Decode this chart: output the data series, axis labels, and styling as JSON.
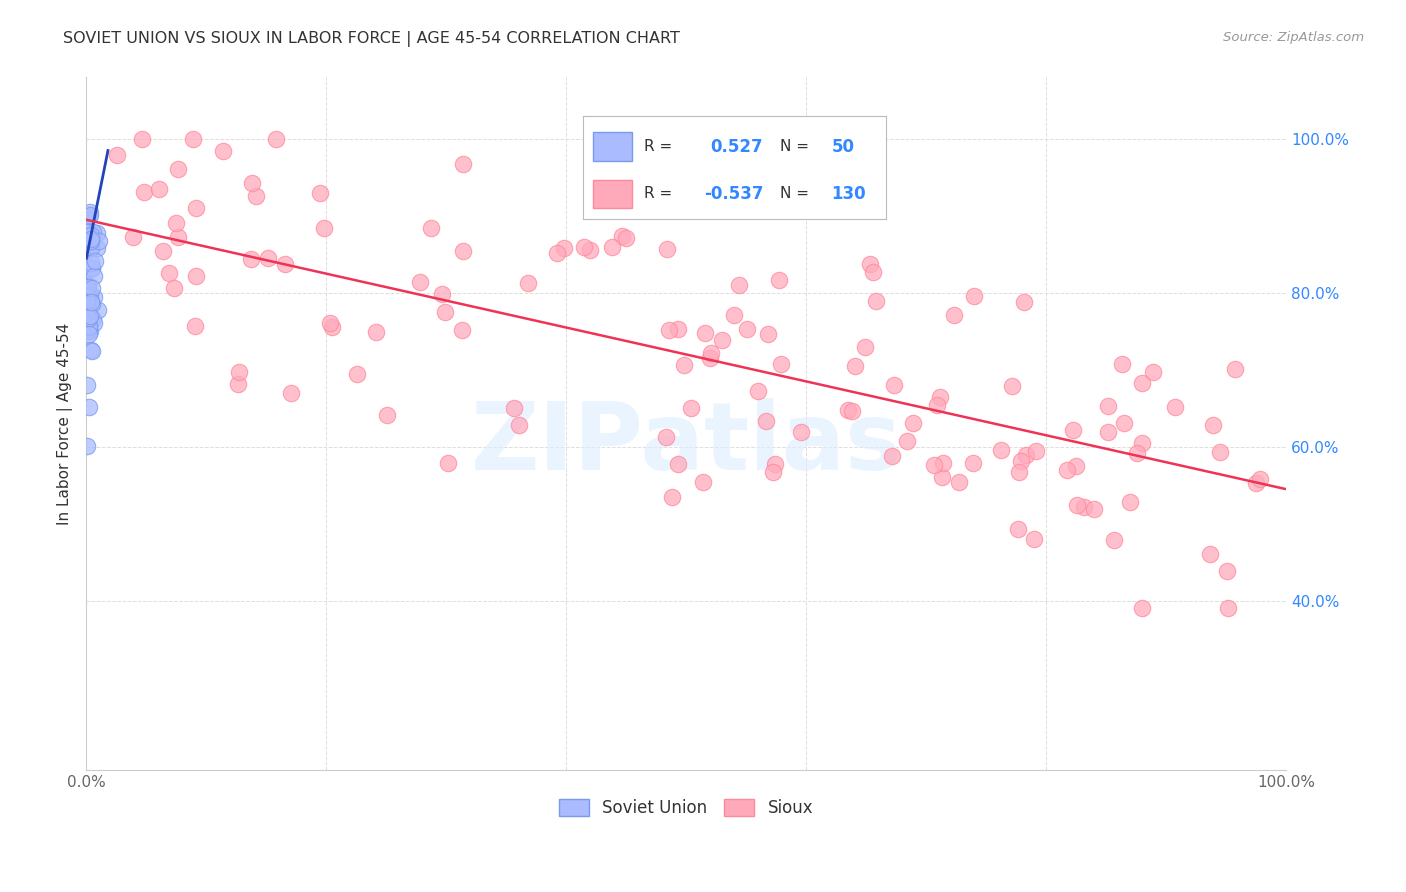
{
  "title": "SOVIET UNION VS SIOUX IN LABOR FORCE | AGE 45-54 CORRELATION CHART",
  "source": "Source: ZipAtlas.com",
  "ylabel": "In Labor Force | Age 45-54",
  "x_tick_positions": [
    0.0,
    0.2,
    0.4,
    0.6,
    0.8,
    1.0
  ],
  "x_tick_labels": [
    "0.0%",
    "",
    "",
    "",
    "",
    "100.0%"
  ],
  "y_tick_positions": [
    0.4,
    0.6,
    0.8,
    1.0
  ],
  "y_tick_labels": [
    "40.0%",
    "60.0%",
    "80.0%",
    "100.0%"
  ],
  "xlim": [
    0.0,
    1.0
  ],
  "ylim": [
    0.18,
    1.08
  ],
  "legend_r1": "0.527",
  "legend_n1": "50",
  "legend_r2": "-0.537",
  "legend_n2": "130",
  "blue_fill_color": "#aabbff",
  "blue_edge_color": "#7799ee",
  "pink_fill_color": "#ffaabb",
  "pink_edge_color": "#ff8899",
  "blue_line_color": "#2244bb",
  "pink_line_color": "#ee3355",
  "right_tick_color": "#3388ff",
  "legend_text_color": "#3388ff",
  "background_color": "#ffffff",
  "grid_color": "#dddddd",
  "title_color": "#333333",
  "blue_trend_x0": 0.0,
  "blue_trend_y0": 0.845,
  "blue_trend_x1": 0.018,
  "blue_trend_y1": 0.985,
  "pink_trend_x0": 0.0,
  "pink_trend_y0": 0.895,
  "pink_trend_x1": 1.0,
  "pink_trend_y1": 0.545,
  "watermark_text": "ZIPatlas",
  "watermark_color": "#ddeeff",
  "scatter_alpha": 0.75,
  "scatter_size": 140
}
